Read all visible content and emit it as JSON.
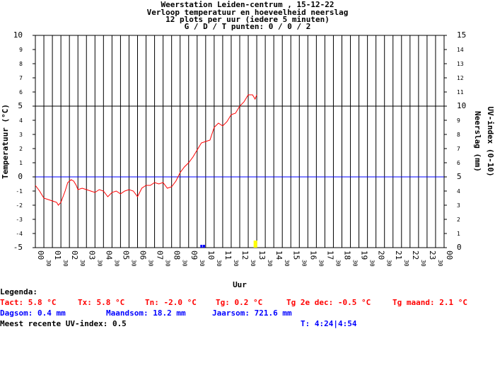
{
  "titles": [
    "Weerstation Leiden-centrum , 15-12-22",
    "Verloop temperatuur en hoeveelheid neerslag",
    "12 plots per uur (iedere 5 minuten)",
    "G / D / T punten: 0 / 0 / 2"
  ],
  "legend": {
    "heading": "Legenda:",
    "tact": "Tact: 5.8 °C",
    "tx": "Tx: 5.8 °C",
    "tn": "Tn: -2.0 °C",
    "tg": "Tg: 0.2 °C",
    "tg2e": "Tg 2e dec: -0.5 °C",
    "tgmaand": "Tg maand: 2.1 °C",
    "dagsom": "Dagsom: 0.4 mm",
    "maandsom": "Maandsom: 18.2 mm",
    "jaarsom": "Jaarsom: 721.6 mm",
    "uv": "Meest recente UV-index: 0.5",
    "t": "T: 4:24|4:54"
  },
  "colors": {
    "temperature": "#ff0000",
    "zero_line": "#0000ff",
    "rain": "#0000ff",
    "uv": "#ffff00",
    "grid": "#000000",
    "background": "#ffffff"
  },
  "chart_data": {
    "type": "line",
    "xlabel": "Uur",
    "ylabel": "Temperatuur (°C)",
    "y2label": "Neerslag (mm)",
    "y3label": "UV-index (0-10)",
    "xlim": [
      0,
      24
    ],
    "ylim": [
      -5,
      10
    ],
    "y2lim": [
      0,
      15
    ],
    "x_major_ticks": [
      "00",
      "01",
      "02",
      "03",
      "04",
      "05",
      "06",
      "07",
      "08",
      "09",
      "10",
      "11",
      "12",
      "13",
      "14",
      "15",
      "16",
      "17",
      "18",
      "19",
      "20",
      "21",
      "22",
      "23",
      "00"
    ],
    "x_minor_label": "30",
    "y_ticks": [
      10,
      9,
      8,
      7,
      6,
      5,
      4,
      3,
      2,
      1,
      0,
      -1,
      -2,
      -3,
      -4,
      -5
    ],
    "y2_ticks": [
      15,
      14,
      13,
      12,
      11,
      10,
      9,
      8,
      7,
      6,
      5,
      4,
      3,
      2,
      1,
      0
    ],
    "series": [
      {
        "name": "Temperatuur",
        "x": [
          0,
          0.25,
          0.5,
          0.75,
          1.0,
          1.25,
          1.35,
          1.5,
          1.75,
          1.9,
          2.1,
          2.25,
          2.4,
          2.5,
          2.75,
          3.0,
          3.25,
          3.5,
          3.75,
          4.0,
          4.25,
          4.5,
          4.75,
          5.0,
          5.25,
          5.5,
          5.75,
          6.0,
          6.25,
          6.5,
          6.75,
          7.0,
          7.25,
          7.5,
          7.75,
          8.0,
          8.25,
          8.5,
          8.75,
          9.0,
          9.25,
          9.5,
          9.75,
          10.0,
          10.25,
          10.5,
          10.75,
          11.0,
          11.25,
          11.5,
          11.75,
          12.0,
          12.25,
          12.5,
          12.75,
          12.9,
          13.0
        ],
        "y": [
          -0.6,
          -1.0,
          -1.5,
          -1.6,
          -1.7,
          -1.8,
          -2.0,
          -1.8,
          -1.0,
          -0.4,
          -0.2,
          -0.3,
          -0.6,
          -0.9,
          -0.8,
          -0.9,
          -1.0,
          -1.1,
          -0.9,
          -1.0,
          -1.4,
          -1.1,
          -1.0,
          -1.2,
          -1.0,
          -0.9,
          -1.0,
          -1.4,
          -0.8,
          -0.6,
          -0.6,
          -0.4,
          -0.5,
          -0.4,
          -0.8,
          -0.7,
          -0.3,
          0.3,
          0.7,
          1.0,
          1.4,
          1.9,
          2.4,
          2.5,
          2.6,
          3.5,
          3.8,
          3.6,
          3.9,
          4.4,
          4.5,
          5.0,
          5.3,
          5.8,
          5.8,
          5.5,
          5.8
        ]
      },
      {
        "name": "Neerslag",
        "bars": [
          {
            "x": 9.75,
            "y": 0.2
          },
          {
            "x": 9.9,
            "y": 0.2
          }
        ]
      },
      {
        "name": "UV-index",
        "bars": [
          {
            "x": 12.9,
            "y": 0.5
          }
        ]
      }
    ]
  }
}
